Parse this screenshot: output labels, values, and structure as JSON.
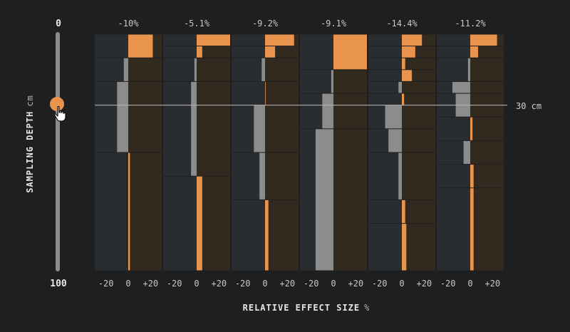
{
  "slider": {
    "min_label": "0",
    "max_label": "100",
    "value_label": "30 cm",
    "value": 30
  },
  "axes": {
    "ylabel": "SAMPLING DEPTH",
    "yunit": "cm",
    "xlabel": "RELATIVE EFFECT SIZE",
    "xunit": "%",
    "xticks": [
      "-20",
      "0",
      "+20"
    ]
  },
  "colors": {
    "background": "#1d1f21",
    "positive": "#e8944c",
    "negative": "#8c8c8c",
    "band_left": "#2a2d30",
    "band_right": "#32291f",
    "reference_line": "#bdbdbd"
  },
  "chart_data": {
    "type": "bar",
    "orientation": "horizontal",
    "depth_range": [
      0,
      100
    ],
    "x_range": [
      -30,
      30
    ],
    "reference_depth": 30,
    "panels": [
      {
        "label": "-10%",
        "layers": [
          {
            "top": 0,
            "bottom": 10,
            "value": 22
          },
          {
            "top": 10,
            "bottom": 20,
            "value": -4
          },
          {
            "top": 20,
            "bottom": 50,
            "value": -10
          },
          {
            "top": 50,
            "bottom": 100,
            "value": 1.5
          }
        ]
      },
      {
        "label": "-5.1%",
        "layers": [
          {
            "top": 0,
            "bottom": 5,
            "value": 30
          },
          {
            "top": 5,
            "bottom": 10,
            "value": 5
          },
          {
            "top": 10,
            "bottom": 20,
            "value": -2
          },
          {
            "top": 20,
            "bottom": 60,
            "value": -5
          },
          {
            "top": 60,
            "bottom": 100,
            "value": 5
          }
        ]
      },
      {
        "label": "-9.2%",
        "layers": [
          {
            "top": 0,
            "bottom": 5,
            "value": 26
          },
          {
            "top": 5,
            "bottom": 10,
            "value": 9
          },
          {
            "top": 10,
            "bottom": 20,
            "value": -3
          },
          {
            "top": 20,
            "bottom": 30,
            "value": 0.5
          },
          {
            "top": 30,
            "bottom": 50,
            "value": -10
          },
          {
            "top": 50,
            "bottom": 70,
            "value": -5
          },
          {
            "top": 70,
            "bottom": 100,
            "value": 3
          }
        ]
      },
      {
        "label": "-9.1%",
        "layers": [
          {
            "top": 0,
            "bottom": 15,
            "value": 30
          },
          {
            "top": 15,
            "bottom": 25,
            "value": -2
          },
          {
            "top": 25,
            "bottom": 40,
            "value": -10
          },
          {
            "top": 40,
            "bottom": 100,
            "value": -16
          }
        ]
      },
      {
        "label": "-14.4%",
        "layers": [
          {
            "top": 0,
            "bottom": 5,
            "value": 18
          },
          {
            "top": 5,
            "bottom": 10,
            "value": 12
          },
          {
            "top": 10,
            "bottom": 15,
            "value": 3
          },
          {
            "top": 15,
            "bottom": 20,
            "value": 9
          },
          {
            "top": 20,
            "bottom": 25,
            "value": -3
          },
          {
            "top": 25,
            "bottom": 30,
            "value": 2
          },
          {
            "top": 30,
            "bottom": 40,
            "value": -15
          },
          {
            "top": 40,
            "bottom": 50,
            "value": -12
          },
          {
            "top": 50,
            "bottom": 70,
            "value": -3
          },
          {
            "top": 70,
            "bottom": 80,
            "value": 3
          },
          {
            "top": 80,
            "bottom": 100,
            "value": 4
          }
        ]
      },
      {
        "label": "-11.2%",
        "layers": [
          {
            "top": 0,
            "bottom": 5,
            "value": 24
          },
          {
            "top": 5,
            "bottom": 10,
            "value": 7
          },
          {
            "top": 10,
            "bottom": 20,
            "value": -2
          },
          {
            "top": 20,
            "bottom": 25,
            "value": -16
          },
          {
            "top": 25,
            "bottom": 35,
            "value": -13
          },
          {
            "top": 35,
            "bottom": 45,
            "value": 2
          },
          {
            "top": 45,
            "bottom": 55,
            "value": -6
          },
          {
            "top": 55,
            "bottom": 65,
            "value": 3
          },
          {
            "top": 65,
            "bottom": 100,
            "value": 3
          }
        ]
      }
    ]
  }
}
